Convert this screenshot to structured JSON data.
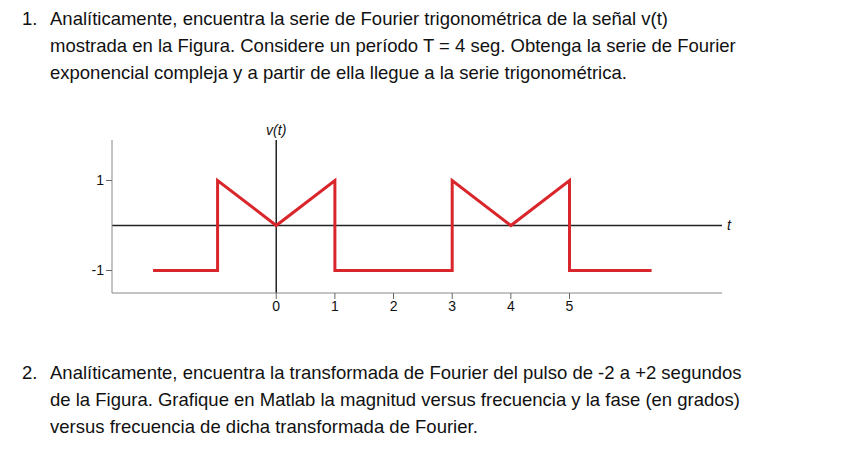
{
  "document": {
    "problems": [
      {
        "number": "1.",
        "lines": [
          "Analíticamente, encuentra la serie de Fourier trigonométrica de la señal v(t)",
          "mostrada en la Figura. Considere un período T = 4 seg. Obtenga la serie de Fourier",
          "exponencial compleja y a partir de ella llegue a la serie trigonométrica."
        ]
      },
      {
        "number": "2.",
        "lines": [
          "Analíticamente, encuentra la transformada de Fourier del pulso de -2 a +2 segundos",
          "de la Figura. Grafique en Matlab la magnitud versus frecuencia y la fase (en grados)",
          "versus frecuencia de dicha transformada de Fourier."
        ]
      }
    ]
  },
  "chart_data": {
    "type": "line",
    "x_label": "t",
    "y_label": "v(t)",
    "x": [
      -2.1,
      -1,
      -1,
      0,
      1,
      1,
      3,
      3,
      4,
      5,
      5,
      6.4
    ],
    "values": [
      -1,
      -1,
      1,
      0,
      1,
      -1,
      -1,
      1,
      0,
      1,
      -1,
      -1
    ],
    "color": "#d9262c",
    "xlim": [
      -2.8,
      7.6
    ],
    "ylim": [
      -1.5,
      1.9
    ],
    "xticks": [
      0,
      1,
      2,
      3,
      4,
      5
    ],
    "yticks": [
      -1,
      1
    ],
    "grid": false
  }
}
